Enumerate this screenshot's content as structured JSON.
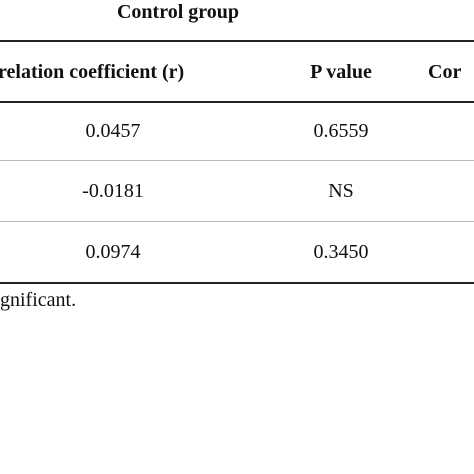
{
  "header": {
    "title": "Control group"
  },
  "table": {
    "columns": [
      "relation coefficient (r)",
      "P value",
      "Cor"
    ],
    "rows": [
      [
        "0.0457",
        "0.6559"
      ],
      [
        "-0.0181",
        "NS"
      ],
      [
        "0.0974",
        "0.3450"
      ]
    ]
  },
  "footnote": "gnificant."
}
